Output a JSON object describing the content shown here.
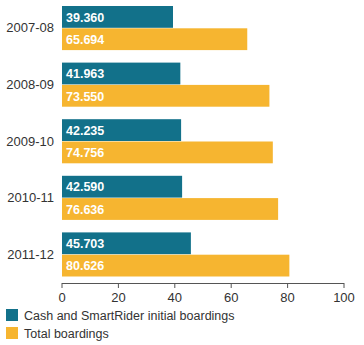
{
  "chart_data": {
    "type": "bar",
    "orientation": "horizontal",
    "categories": [
      "2007-08",
      "2008-09",
      "2009-10",
      "2010-11",
      "2011-12"
    ],
    "series": [
      {
        "name": "Cash and SmartRider initial boardings",
        "color": "#12718a",
        "values": [
          39.36,
          41.963,
          42.235,
          42.59,
          45.703
        ],
        "value_labels": [
          "39.360",
          "41.963",
          "42.235",
          "42.590",
          "45.703"
        ]
      },
      {
        "name": "Total boardings",
        "color": "#f6b530",
        "values": [
          65.694,
          73.55,
          74.756,
          76.636,
          80.626
        ],
        "value_labels": [
          "65.694",
          "73.550",
          "74.756",
          "76.636",
          "80.626"
        ]
      }
    ],
    "xlim": [
      0,
      100
    ],
    "xticks": [
      0,
      20,
      40,
      60,
      80,
      100
    ],
    "data_labels": true,
    "grid": false,
    "legend": "bottom"
  }
}
